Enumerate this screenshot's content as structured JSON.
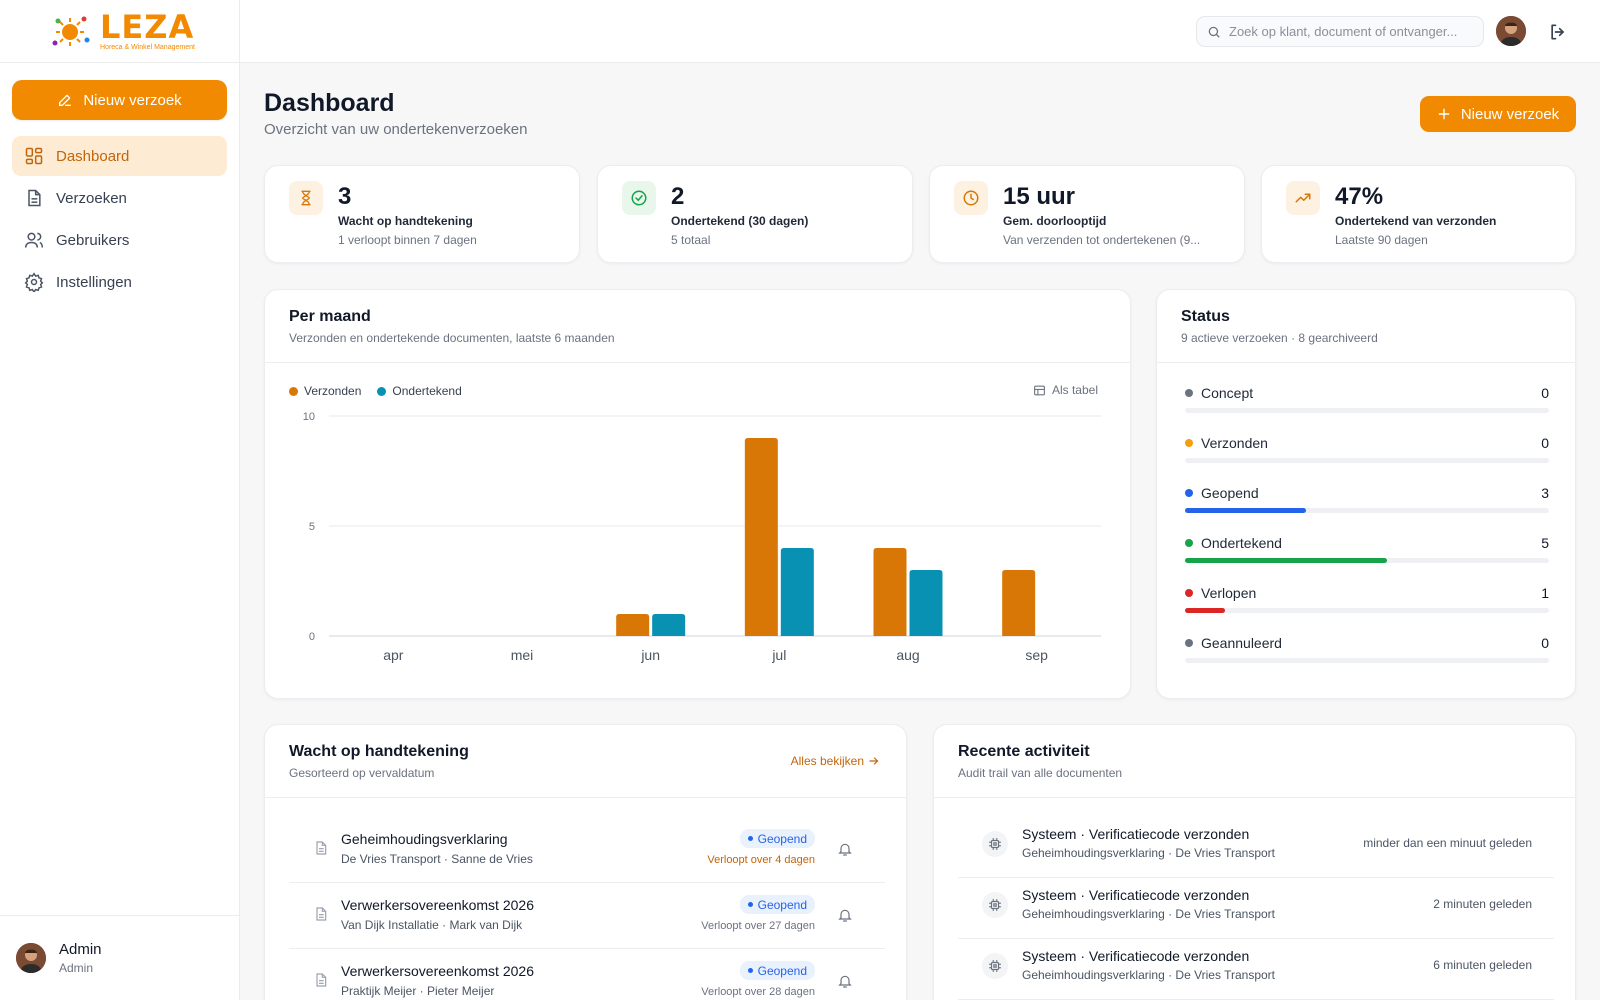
{
  "brand": {
    "name": "LEZA",
    "tagline": "Horeca & Winkel Management",
    "accent": "#f18a00"
  },
  "sidebar": {
    "new_request": "Nieuw verzoek",
    "items": [
      {
        "label": "Dashboard",
        "icon": "dashboard-icon",
        "active": true
      },
      {
        "label": "Verzoeken",
        "icon": "document-icon",
        "active": false
      },
      {
        "label": "Gebruikers",
        "icon": "users-icon",
        "active": false
      },
      {
        "label": "Instellingen",
        "icon": "gear-icon",
        "active": false
      }
    ],
    "user": {
      "name": "Admin",
      "role": "Admin"
    }
  },
  "topbar": {
    "search_placeholder": "Zoek op klant, document of ontvanger..."
  },
  "header": {
    "title": "Dashboard",
    "subtitle": "Overzicht van uw ondertekenverzoeken",
    "new_request": "Nieuw verzoek"
  },
  "stats": [
    {
      "value": "3",
      "label": "Wacht op handtekening",
      "sub": "1 verloopt binnen 7 dagen",
      "icon": "hourglass-icon",
      "color": "#d97706"
    },
    {
      "value": "2",
      "label": "Ondertekend (30 dagen)",
      "sub": "5 totaal",
      "icon": "check-circle-icon",
      "color": "#16a34a"
    },
    {
      "value": "15 uur",
      "label": "Gem. doorlooptijd",
      "sub": "Van verzenden tot ondertekenen (9...",
      "icon": "clock-icon",
      "color": "#d97706"
    },
    {
      "value": "47%",
      "label": "Ondertekend van verzonden",
      "sub": "Laatste 90 dagen",
      "icon": "trending-up-icon",
      "color": "#d97706"
    }
  ],
  "chart_card": {
    "title": "Per maand",
    "subtitle": "Verzonden en ondertekende documenten, laatste 6 maanden",
    "as_table": "Als tabel"
  },
  "chart_data": {
    "type": "bar",
    "categories": [
      "apr",
      "mei",
      "jun",
      "jul",
      "aug",
      "sep"
    ],
    "series": [
      {
        "name": "Verzonden",
        "color": "#d97706",
        "values": [
          0,
          0,
          1,
          9,
          4,
          3
        ]
      },
      {
        "name": "Ondertekend",
        "color": "#0891b2",
        "values": [
          0,
          0,
          1,
          4,
          3,
          0
        ]
      }
    ],
    "yticks": [
      0,
      5,
      10
    ],
    "ylim": [
      0,
      10
    ],
    "grid": true,
    "legend": "top-left"
  },
  "status_card": {
    "title": "Status",
    "subtitle": "9 actieve verzoeken · 8 gearchiveerd",
    "total": 9,
    "rows": [
      {
        "label": "Concept",
        "count": 0,
        "color": "#6b7280"
      },
      {
        "label": "Verzonden",
        "count": 0,
        "color": "#f59e0b"
      },
      {
        "label": "Geopend",
        "count": 3,
        "color": "#2563eb"
      },
      {
        "label": "Ondertekend",
        "count": 5,
        "color": "#16a34a"
      },
      {
        "label": "Verlopen",
        "count": 1,
        "color": "#dc2626"
      },
      {
        "label": "Geannuleerd",
        "count": 0,
        "color": "#6b7280"
      }
    ]
  },
  "waiting": {
    "title": "Wacht op handtekening",
    "subtitle": "Gesorteerd op vervaldatum",
    "see_all": "Alles bekijken",
    "items": [
      {
        "title": "Geheimhoudingsverklaring",
        "sub": "De Vries Transport · Sanne de Vries",
        "status": "Geopend",
        "expires": "Verloopt over 4 dagen",
        "urgent": true
      },
      {
        "title": "Verwerkersovereenkomst 2026",
        "sub": "Van Dijk Installatie · Mark van Dijk",
        "status": "Geopend",
        "expires": "Verloopt over 27 dagen",
        "urgent": false
      },
      {
        "title": "Verwerkersovereenkomst 2026",
        "sub": "Praktijk Meijer · Pieter Meijer",
        "status": "Geopend",
        "expires": "Verloopt over 28 dagen",
        "urgent": false
      }
    ]
  },
  "activity": {
    "title": "Recente activiteit",
    "subtitle": "Audit trail van alle documenten",
    "items": [
      {
        "title": "Systeem · Verificatiecode verzonden",
        "sub": "Geheimhoudingsverklaring · De Vries Transport",
        "time": "minder dan een minuut geleden"
      },
      {
        "title": "Systeem · Verificatiecode verzonden",
        "sub": "Geheimhoudingsverklaring · De Vries Transport",
        "time": "2 minuten geleden"
      },
      {
        "title": "Systeem · Verificatiecode verzonden",
        "sub": "Geheimhoudingsverklaring · De Vries Transport",
        "time": "6 minuten geleden"
      }
    ]
  }
}
